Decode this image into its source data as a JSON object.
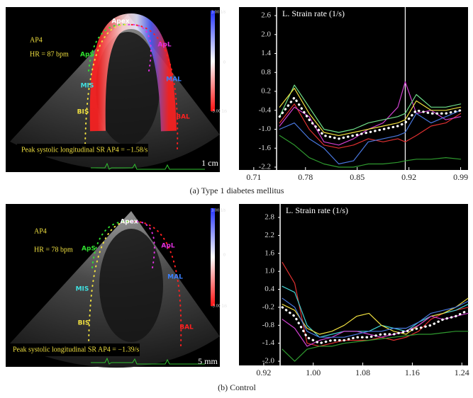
{
  "panels": [
    {
      "image": {
        "view": "AP4",
        "hr": "HR = 87 bpm",
        "segments": [
          "Apex",
          "ApS",
          "ApL",
          "MIS",
          "MAL",
          "BIS",
          "BAL"
        ],
        "colorbar": [
          "3.00 1/s",
          "0",
          "-3.00 1/s"
        ],
        "peak": "Peak systolic longitudinal SR AP4 = −1.58/s",
        "scale": "1 cm"
      },
      "caption": "(a) Type 1 diabetes mellitus"
    },
    {
      "image": {
        "view": "AP4",
        "hr": "HR = 78 bpm",
        "segments": [
          "Apex",
          "ApS",
          "ApL",
          "MIS",
          "MAL",
          "BIS",
          "BAL"
        ],
        "colorbar": [
          "3.00 1/s",
          "0",
          "-3.00 1/s"
        ],
        "peak": "Peak systolic longitudinal SR AP4 = −1.39/s",
        "scale": "5 mm"
      },
      "caption": "(b) Control"
    }
  ],
  "chart_data": [
    {
      "type": "line",
      "title": "L. Strain rate (1/s)",
      "x": [
        0.745,
        0.765,
        0.785,
        0.805,
        0.825,
        0.845,
        0.865,
        0.885,
        0.905,
        0.915,
        0.93,
        0.95,
        0.97,
        0.99
      ],
      "xlim": [
        0.69,
        1.0
      ],
      "xticks": [
        0.71,
        0.78,
        0.85,
        0.92,
        0.99
      ],
      "ylim": [
        -2.29,
        2.87
      ],
      "yticks": [
        2.6,
        {
          "value": 2,
          "label": "2.0"
        },
        1.4,
        0.8,
        0.2,
        -0.4,
        {
          "value": -1,
          "label": "-1.0"
        },
        -1.6,
        -2.2
      ],
      "cursor_x": 0.915,
      "series": [
        {
          "color": "#e03030",
          "values": [
            -0.8,
            -0.2,
            -1.0,
            -1.5,
            -1.6,
            -1.5,
            -1.3,
            -1.4,
            -1.3,
            -1.4,
            -1.2,
            -0.9,
            -0.8,
            -0.5
          ]
        },
        {
          "color": "#d040d0",
          "values": [
            -0.9,
            -0.3,
            -0.6,
            -1.4,
            -1.5,
            -1.3,
            -1.0,
            -0.8,
            -0.3,
            0.5,
            -0.5,
            -0.4,
            -0.7,
            -0.6
          ]
        },
        {
          "color": "#4a78e0",
          "values": [
            -1.0,
            -0.8,
            -1.3,
            -1.6,
            -2.1,
            -2.0,
            -1.4,
            -1.3,
            -1.2,
            -1.1,
            -0.5,
            -0.8,
            -0.6,
            -0.4
          ]
        },
        {
          "color": "#6fe08a",
          "values": [
            -0.6,
            0.4,
            -0.3,
            -1.0,
            -1.1,
            -1.0,
            -0.8,
            -0.7,
            -0.6,
            -0.5,
            0.1,
            -0.3,
            -0.3,
            -0.2
          ]
        },
        {
          "color": "#2f9a2f",
          "values": [
            -1.2,
            -1.5,
            -1.9,
            -2.1,
            -2.2,
            -2.2,
            -2.1,
            -2.1,
            -2.05,
            -2.0,
            -1.95,
            -1.95,
            -1.9,
            -1.95
          ]
        },
        {
          "color": "#f0e040",
          "values": [
            -0.3,
            0.3,
            -0.5,
            -1.1,
            -1.2,
            -1.1,
            -1.0,
            -0.9,
            -0.8,
            -0.7,
            -0.1,
            -0.4,
            -0.4,
            -0.3
          ]
        },
        {
          "color": "#ffffff",
          "style": "dotted",
          "values": [
            -0.6,
            0.0,
            -0.7,
            -1.2,
            -1.3,
            -1.2,
            -1.1,
            -1.0,
            -0.9,
            -0.8,
            -0.4,
            -0.5,
            -0.5,
            -0.4
          ]
        }
      ]
    },
    {
      "type": "line",
      "title": "L. Strain rate (1/s)",
      "x": [
        0.95,
        0.97,
        0.99,
        1.01,
        1.03,
        1.05,
        1.07,
        1.09,
        1.11,
        1.13,
        1.15,
        1.17,
        1.19,
        1.21,
        1.23,
        1.25
      ],
      "xlim": [
        0.88,
        1.25
      ],
      "xticks": [
        0.92,
        {
          "value": 1,
          "label": "1.00"
        },
        1.08,
        1.16,
        1.24
      ],
      "ylim": [
        -2.14,
        3.25
      ],
      "yticks": [
        2.8,
        2.2,
        1.6,
        {
          "value": 1,
          "label": "1.0"
        },
        0.4,
        -0.2,
        -0.8,
        -1.4,
        {
          "value": -2,
          "label": "-2.0"
        }
      ],
      "series": [
        {
          "color": "#e03030",
          "values": [
            1.3,
            0.6,
            -1.4,
            -1.5,
            -1.4,
            -1.3,
            -1.3,
            -1.3,
            -1.2,
            -1.3,
            -1.2,
            -1.0,
            -0.6,
            -0.4,
            -0.3,
            -0.2
          ]
        },
        {
          "color": "#40d0d0",
          "values": [
            0.5,
            0.3,
            -0.8,
            -1.2,
            -1.1,
            -1.0,
            -1.0,
            -1.0,
            -0.8,
            -0.9,
            -1.0,
            -0.7,
            -0.5,
            -0.4,
            -0.3,
            -0.1
          ]
        },
        {
          "color": "#f0e040",
          "values": [
            -0.1,
            -0.3,
            -0.9,
            -1.1,
            -1.0,
            -0.8,
            -0.5,
            -0.4,
            -0.8,
            -1.0,
            -1.1,
            -0.8,
            -0.5,
            -0.4,
            -0.2,
            0.1
          ]
        },
        {
          "color": "#d040d0",
          "values": [
            -0.6,
            -0.9,
            -1.5,
            -1.3,
            -1.2,
            -1.0,
            -1.0,
            -1.1,
            -1.2,
            -1.1,
            -1.0,
            -0.8,
            -0.5,
            -0.6,
            -0.5,
            -0.4
          ]
        },
        {
          "color": "#2f9a2f",
          "values": [
            -1.6,
            -2.0,
            -1.6,
            -1.5,
            -1.5,
            -1.4,
            -1.35,
            -1.3,
            -1.25,
            -1.2,
            -1.15,
            -1.1,
            -1.1,
            -1.05,
            -1.0,
            -1.0
          ]
        },
        {
          "color": "#4a78e0",
          "values": [
            0.1,
            -0.2,
            -1.0,
            -1.2,
            -1.2,
            -1.2,
            -1.1,
            -1.0,
            -1.0,
            -0.9,
            -0.9,
            -0.7,
            -0.4,
            -0.3,
            -0.2,
            0.0
          ]
        },
        {
          "color": "#ffffff",
          "style": "dotted",
          "values": [
            -0.2,
            -0.5,
            -1.2,
            -1.4,
            -1.3,
            -1.3,
            -1.2,
            -1.2,
            -1.1,
            -1.1,
            -1.0,
            -0.9,
            -0.8,
            -0.6,
            -0.5,
            -0.3
          ]
        }
      ]
    }
  ]
}
